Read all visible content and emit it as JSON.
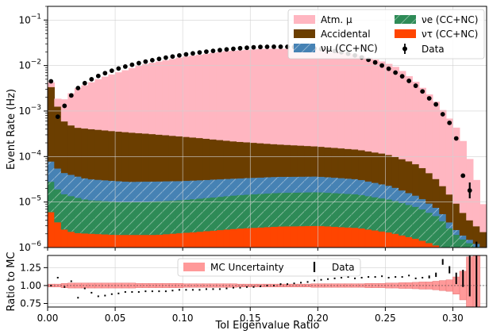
{
  "chart_data": [
    {
      "type": "area",
      "stacked": true,
      "step": true,
      "x_label": "ToI Eigenvalue Ratio",
      "y_label": "Event Rate (Hz)",
      "y_scale": "log",
      "xlim": [
        0.0,
        0.325
      ],
      "ylim": [
        1e-06,
        0.2
      ],
      "grid": true,
      "legend_position": "top-right",
      "bin_width": 0.005,
      "series": [
        {
          "name": "ντ (CC+NC)",
          "legend_label_tex": "ν_τ (CC+NC)",
          "color": "#ff4500",
          "anchors": [
            [
              0.0,
              1.2e-06
            ],
            [
              0.0025,
              6e-06
            ],
            [
              0.0075,
              3.6e-06
            ],
            [
              0.0125,
              2.5e-06
            ],
            [
              0.02,
              2.1e-06
            ],
            [
              0.05,
              1.9e-06
            ],
            [
              0.08,
              1.9e-06
            ],
            [
              0.11,
              2.2e-06
            ],
            [
              0.14,
              2.6e-06
            ],
            [
              0.17,
              2.9e-06
            ],
            [
              0.2,
              3e-06
            ],
            [
              0.23,
              2.7e-06
            ],
            [
              0.255,
              2.1e-06
            ],
            [
              0.275,
              1.5e-06
            ],
            [
              0.29,
              1.05e-06
            ],
            [
              0.3,
              5e-07
            ],
            [
              0.325,
              3e-07
            ]
          ]
        },
        {
          "name": "νe (CC+NC)",
          "legend_label_tex": "ν_e (CC+NC)",
          "color": "#2e8b57",
          "anchors": [
            [
              0.0,
              1e-06
            ],
            [
              0.0025,
              2.2e-05
            ],
            [
              0.01,
              1.3e-05
            ],
            [
              0.03,
              9e-06
            ],
            [
              0.06,
              8e-06
            ],
            [
              0.1,
              9e-06
            ],
            [
              0.14,
              1.15e-05
            ],
            [
              0.17,
              1.3e-05
            ],
            [
              0.2,
              1.35e-05
            ],
            [
              0.23,
              1.2e-05
            ],
            [
              0.255,
              9e-06
            ],
            [
              0.275,
              6e-06
            ],
            [
              0.29,
              3.5e-06
            ],
            [
              0.305,
              1.2e-06
            ],
            [
              0.325,
              5e-07
            ]
          ]
        },
        {
          "name": "νμ (CC+NC)",
          "legend_label_tex": "ν_μ (CC+NC)",
          "color": "#4682b4",
          "anchors": [
            [
              0.0,
              8e-05
            ],
            [
              0.0025,
              5e-05
            ],
            [
              0.01,
              3e-05
            ],
            [
              0.03,
              2.1e-05
            ],
            [
              0.06,
              1.8e-05
            ],
            [
              0.1,
              1.8e-05
            ],
            [
              0.14,
              1.9e-05
            ],
            [
              0.17,
              2e-05
            ],
            [
              0.2,
              2e-05
            ],
            [
              0.23,
              1.7e-05
            ],
            [
              0.255,
              1.1e-05
            ],
            [
              0.275,
              5.5e-06
            ],
            [
              0.29,
              2.2e-06
            ],
            [
              0.305,
              4e-07
            ],
            [
              0.325,
              1e-07
            ]
          ]
        },
        {
          "name": "Accidental",
          "color": "#6b3e00",
          "anchors": [
            [
              0.0,
              0.0035
            ],
            [
              0.0025,
              0.0033
            ],
            [
              0.0075,
              0.0012
            ],
            [
              0.0125,
              0.00055
            ],
            [
              0.02,
              0.0004
            ],
            [
              0.05,
              0.00033
            ],
            [
              0.08,
              0.00028
            ],
            [
              0.11,
              0.00023
            ],
            [
              0.14,
              0.00018
            ],
            [
              0.17,
              0.00015
            ],
            [
              0.2,
              0.00013
            ],
            [
              0.23,
              0.00011
            ],
            [
              0.25,
              9e-05
            ],
            [
              0.27,
              6e-05
            ],
            [
              0.28,
              4e-05
            ],
            [
              0.29,
              2.1e-05
            ],
            [
              0.3,
              9e-06
            ],
            [
              0.31,
              3e-06
            ],
            [
              0.325,
              1e-06
            ]
          ]
        },
        {
          "name": "Atm. μ",
          "legend_label_tex": "Atm. μ",
          "color": "#ffb6c1",
          "anchors": [
            [
              0.0,
              0.001
            ],
            [
              0.0075,
              0.0006
            ],
            [
              0.0125,
              0.0012
            ],
            [
              0.02,
              0.0025
            ],
            [
              0.04,
              0.005
            ],
            [
              0.07,
              0.01
            ],
            [
              0.1,
              0.015
            ],
            [
              0.13,
              0.02
            ],
            [
              0.16,
              0.023
            ],
            [
              0.19,
              0.023
            ],
            [
              0.21,
              0.021
            ],
            [
              0.23,
              0.017
            ],
            [
              0.25,
              0.0115
            ],
            [
              0.26,
              0.0085
            ],
            [
              0.27,
              0.005
            ],
            [
              0.28,
              0.0027
            ],
            [
              0.29,
              0.0013
            ],
            [
              0.295,
              0.0008
            ],
            [
              0.3,
              0.00055
            ],
            [
              0.305,
              0.00032
            ],
            [
              0.31,
              0.00014
            ],
            [
              0.315,
              5e-05
            ],
            [
              0.32,
              1.5e-05
            ],
            [
              0.325,
              3e-06
            ]
          ]
        }
      ],
      "data_points": {
        "name": "Data",
        "x": [
          0.0025,
          0.0075,
          0.0125,
          0.0175,
          0.0225,
          0.0275,
          0.0325,
          0.0375,
          0.0425,
          0.0475,
          0.0525,
          0.0575,
          0.0625,
          0.0675,
          0.0725,
          0.0775,
          0.0825,
          0.0875,
          0.0925,
          0.0975,
          0.1025,
          0.1075,
          0.1125,
          0.1175,
          0.1225,
          0.1275,
          0.1325,
          0.1375,
          0.1425,
          0.1475,
          0.1525,
          0.1575,
          0.1625,
          0.1675,
          0.1725,
          0.1775,
          0.1825,
          0.1875,
          0.1925,
          0.1975,
          0.2025,
          0.2075,
          0.2125,
          0.2175,
          0.2225,
          0.2275,
          0.2325,
          0.2375,
          0.2425,
          0.2475,
          0.2525,
          0.2575,
          0.2625,
          0.2675,
          0.2725,
          0.2775,
          0.2825,
          0.2875,
          0.2925,
          0.2975,
          0.3025,
          0.3075,
          0.3125,
          0.3175
        ],
        "y": [
          0.0045,
          0.00075,
          0.0013,
          0.0022,
          0.0032,
          0.0041,
          0.005,
          0.0059,
          0.0068,
          0.0077,
          0.0086,
          0.0095,
          0.0104,
          0.0113,
          0.0122,
          0.0131,
          0.014,
          0.0149,
          0.0158,
          0.0167,
          0.0176,
          0.0185,
          0.0194,
          0.0202,
          0.021,
          0.0218,
          0.0226,
          0.0233,
          0.024,
          0.0246,
          0.0252,
          0.0256,
          0.0258,
          0.0259,
          0.0259,
          0.0258,
          0.0255,
          0.0251,
          0.0246,
          0.0239,
          0.0231,
          0.0221,
          0.0209,
          0.0196,
          0.0182,
          0.0167,
          0.0151,
          0.0134,
          0.0117,
          0.01,
          0.0085,
          0.007,
          0.0058,
          0.0046,
          0.0036,
          0.0027,
          0.0019,
          0.0014,
          0.00085,
          0.00055,
          0.00025,
          3.8e-05,
          1.8e-05,
          9e-07
        ],
        "yerr_visible_at_x": [
          0.3125,
          0.3175
        ]
      }
    },
    {
      "type": "scatter",
      "x_label": "ToI Eigenvalue Ratio",
      "y_label": "Ratio to MC",
      "xlim": [
        0.0,
        0.325
      ],
      "ylim": [
        0.7,
        1.42
      ],
      "y_ticks": [
        0.75,
        1.0,
        1.25
      ],
      "x_ticks": [
        0.0,
        0.05,
        0.1,
        0.15,
        0.2,
        0.25,
        0.3
      ],
      "grid": true,
      "legend_position": "top-center",
      "band": {
        "name": "MC Uncertainty",
        "color": "#ff9999",
        "halfwidth": [
          0.02,
          0.02,
          0.03,
          0.035,
          0.035,
          0.035,
          0.035,
          0.035,
          0.035,
          0.035,
          0.035,
          0.035,
          0.035,
          0.03,
          0.03,
          0.03,
          0.03,
          0.03,
          0.03,
          0.03,
          0.025,
          0.025,
          0.025,
          0.025,
          0.025,
          0.025,
          0.025,
          0.025,
          0.02,
          0.02,
          0.02,
          0.02,
          0.02,
          0.02,
          0.02,
          0.02,
          0.02,
          0.02,
          0.02,
          0.025,
          0.025,
          0.025,
          0.025,
          0.025,
          0.025,
          0.025,
          0.025,
          0.03,
          0.03,
          0.03,
          0.035,
          0.035,
          0.04,
          0.04,
          0.045,
          0.05,
          0.05,
          0.06,
          0.07,
          0.08,
          0.12,
          0.2,
          0.4,
          0.5
        ]
      },
      "series": [
        {
          "name": "Data",
          "x": [
            0.0025,
            0.0075,
            0.0125,
            0.0175,
            0.0225,
            0.0275,
            0.0325,
            0.0375,
            0.0425,
            0.0475,
            0.0525,
            0.0575,
            0.0625,
            0.0675,
            0.0725,
            0.0775,
            0.0825,
            0.0875,
            0.0925,
            0.0975,
            0.1025,
            0.1075,
            0.1125,
            0.1175,
            0.1225,
            0.1275,
            0.1325,
            0.1375,
            0.1425,
            0.1475,
            0.1525,
            0.1575,
            0.1625,
            0.1675,
            0.1725,
            0.1775,
            0.1825,
            0.1875,
            0.1925,
            0.1975,
            0.2025,
            0.2075,
            0.2125,
            0.2175,
            0.2225,
            0.2275,
            0.2325,
            0.2375,
            0.2425,
            0.2475,
            0.2525,
            0.2575,
            0.2625,
            0.2675,
            0.2725,
            0.2775,
            0.2825,
            0.2875,
            0.2925,
            0.2975,
            0.3025,
            0.3075,
            0.3125,
            0.3175
          ],
          "y": [
            1.0,
            1.11,
            0.98,
            1.06,
            0.83,
            0.96,
            0.9,
            0.85,
            0.86,
            0.88,
            0.89,
            0.91,
            0.91,
            0.91,
            0.92,
            0.92,
            0.92,
            0.92,
            0.93,
            0.94,
            0.94,
            0.94,
            0.94,
            0.95,
            0.95,
            0.95,
            0.96,
            0.97,
            0.97,
            0.98,
            0.98,
            0.99,
            1.0,
            1.0,
            1.02,
            1.02,
            1.03,
            1.04,
            1.05,
            1.07,
            1.08,
            1.09,
            1.1,
            1.11,
            1.12,
            1.1,
            1.11,
            1.12,
            1.12,
            1.13,
            1.11,
            1.12,
            1.12,
            1.14,
            1.1,
            1.11,
            1.12,
            1.15,
            1.33,
            1.22,
            1.1,
            1.1,
            1.3,
            1.1
          ],
          "yerr": [
            0.01,
            0.01,
            0.01,
            0.01,
            0.01,
            0.01,
            0.01,
            0.01,
            0.01,
            0.01,
            0.005,
            0.005,
            0.005,
            0.005,
            0.005,
            0.005,
            0.005,
            0.005,
            0.005,
            0.005,
            0.005,
            0.005,
            0.005,
            0.005,
            0.005,
            0.005,
            0.005,
            0.005,
            0.005,
            0.005,
            0.005,
            0.005,
            0.005,
            0.005,
            0.005,
            0.005,
            0.005,
            0.005,
            0.005,
            0.005,
            0.005,
            0.005,
            0.005,
            0.005,
            0.005,
            0.005,
            0.005,
            0.005,
            0.005,
            0.005,
            0.01,
            0.01,
            0.01,
            0.01,
            0.01,
            0.01,
            0.02,
            0.03,
            0.04,
            0.05,
            0.08,
            0.12,
            0.45,
            0.5
          ]
        }
      ]
    }
  ]
}
